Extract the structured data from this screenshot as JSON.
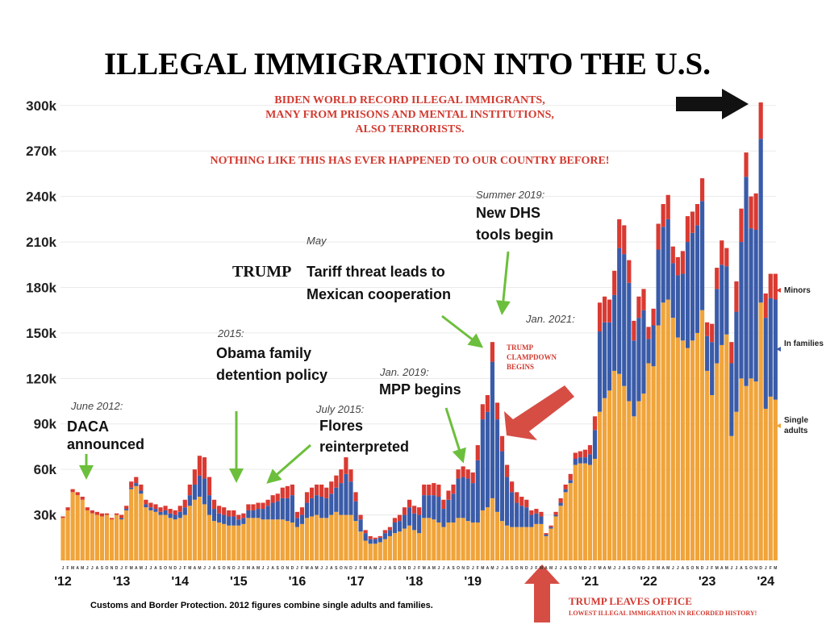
{
  "chart_data": {
    "type": "stacked-bar",
    "title": "ILLEGAL IMMIGRATION INTO THE U.S.",
    "source": "Customs and Border Protection. 2012 figures combine single adults and families.",
    "ylim": [
      0,
      310
    ],
    "yticks": [
      {
        "value": 30,
        "label": "30k"
      },
      {
        "value": 60,
        "label": "60k"
      },
      {
        "value": 90,
        "label": "90k"
      },
      {
        "value": 120,
        "label": "120k"
      },
      {
        "value": 150,
        "label": "150k"
      },
      {
        "value": 180,
        "label": "180k"
      },
      {
        "value": 210,
        "label": "210k"
      },
      {
        "value": 240,
        "label": "240k"
      },
      {
        "value": 270,
        "label": "270k"
      },
      {
        "value": 300,
        "label": "300k"
      }
    ],
    "grid": true,
    "categories": [
      "J",
      "F",
      "M",
      "A",
      "M",
      "J",
      "J",
      "A",
      "S",
      "O",
      "N",
      "D",
      "J",
      "F",
      "M",
      "A",
      "M",
      "J",
      "J",
      "A",
      "S",
      "O",
      "N",
      "D",
      "J",
      "F",
      "M",
      "A",
      "M",
      "J",
      "J",
      "A",
      "S",
      "O",
      "N",
      "D",
      "J",
      "F",
      "M",
      "A",
      "M",
      "J",
      "J",
      "A",
      "S",
      "O",
      "N",
      "D",
      "J",
      "F",
      "M",
      "A",
      "M",
      "J",
      "J",
      "A",
      "S",
      "O",
      "N",
      "D",
      "J",
      "F",
      "M",
      "A",
      "M",
      "J",
      "J",
      "A",
      "S",
      "O",
      "N",
      "D",
      "J",
      "F",
      "M",
      "A",
      "M",
      "J",
      "J",
      "A",
      "S",
      "O",
      "N",
      "D",
      "J",
      "F",
      "M",
      "A",
      "M",
      "J",
      "J",
      "A",
      "S",
      "O",
      "N",
      "D",
      "J",
      "F",
      "M",
      "A",
      "M",
      "J",
      "J",
      "A",
      "S",
      "O",
      "N",
      "D",
      "J",
      "F",
      "M",
      "A",
      "M",
      "J",
      "J",
      "A",
      "S",
      "O",
      "N",
      "D",
      "J",
      "F",
      "M",
      "A",
      "M",
      "J",
      "J",
      "A",
      "S",
      "O",
      "N",
      "D",
      "J",
      "F",
      "M",
      "A",
      "M",
      "J",
      "J",
      "A",
      "S",
      "O",
      "N",
      "D",
      "J",
      "F",
      "M"
    ],
    "years": [
      "'12",
      null,
      null,
      null,
      null,
      null,
      null,
      null,
      null,
      null,
      null,
      null,
      "'13",
      null,
      null,
      null,
      null,
      null,
      null,
      null,
      null,
      null,
      null,
      null,
      "'14",
      null,
      null,
      null,
      null,
      null,
      null,
      null,
      null,
      null,
      null,
      null,
      "'15",
      null,
      null,
      null,
      null,
      null,
      null,
      null,
      null,
      null,
      null,
      null,
      "'16",
      null,
      null,
      null,
      null,
      null,
      null,
      null,
      null,
      null,
      null,
      null,
      "'17",
      null,
      null,
      null,
      null,
      null,
      null,
      null,
      null,
      null,
      null,
      null,
      "'18",
      null,
      null,
      null,
      null,
      null,
      null,
      null,
      null,
      null,
      null,
      null,
      "'19",
      null,
      null,
      null,
      null,
      null,
      null,
      null,
      null,
      null,
      null,
      null,
      null,
      null,
      null,
      null,
      null,
      null,
      null,
      null,
      null,
      null,
      null,
      null,
      "'21",
      null,
      null,
      null,
      null,
      null,
      null,
      null,
      null,
      null,
      null,
      null,
      "'22",
      null,
      null,
      null,
      null,
      null,
      null,
      null,
      null,
      null,
      null,
      null,
      "'23",
      null,
      null,
      null,
      null,
      null,
      null,
      null,
      null,
      null,
      null,
      null,
      "'24",
      null,
      null
    ],
    "series": [
      {
        "name": "Single adults",
        "color": "#f0a43a",
        "values": [
          28,
          33,
          45,
          43,
          40,
          33,
          31,
          30,
          29,
          30,
          27,
          30,
          27,
          33,
          47,
          49,
          44,
          35,
          33,
          32,
          30,
          30,
          28,
          27,
          28,
          30,
          36,
          40,
          42,
          37,
          30,
          26,
          25,
          24,
          23,
          23,
          23,
          24,
          28,
          28,
          28,
          27,
          27,
          27,
          27,
          27,
          26,
          25,
          22,
          24,
          28,
          29,
          30,
          28,
          28,
          30,
          32,
          30,
          30,
          30,
          26,
          19,
          13,
          11,
          11,
          12,
          14,
          16,
          18,
          19,
          21,
          23,
          20,
          18,
          28,
          28,
          27,
          25,
          22,
          25,
          25,
          28,
          28,
          26,
          25,
          25,
          33,
          35,
          41,
          32,
          26,
          23,
          22,
          22,
          22,
          22,
          22,
          24,
          24,
          16,
          21,
          29,
          36,
          45,
          51,
          63,
          64,
          64,
          63,
          67,
          98,
          107,
          112,
          125,
          123,
          115,
          105,
          95,
          105,
          110,
          130,
          128,
          155,
          170,
          172,
          160,
          147,
          145,
          140,
          145,
          150,
          165,
          125,
          109,
          130,
          142,
          149,
          82,
          98,
          120,
          115,
          120,
          118,
          170,
          100,
          108,
          106
        ]
      },
      {
        "name": "In families",
        "color": "#3a5ba8",
        "values": [
          0,
          0,
          0,
          0,
          0,
          0,
          0,
          0,
          0,
          0,
          0,
          0,
          1,
          1,
          1,
          2,
          2,
          2,
          2,
          2,
          2,
          3,
          3,
          3,
          4,
          5,
          7,
          10,
          14,
          17,
          13,
          8,
          6,
          6,
          6,
          6,
          4,
          4,
          5,
          5,
          6,
          7,
          9,
          11,
          12,
          14,
          15,
          18,
          6,
          6,
          10,
          12,
          13,
          14,
          13,
          14,
          16,
          21,
          27,
          22,
          13,
          8,
          5,
          3,
          3,
          3,
          4,
          4,
          7,
          7,
          9,
          12,
          11,
          12,
          15,
          15,
          16,
          17,
          12,
          15,
          19,
          26,
          27,
          28,
          26,
          41,
          60,
          63,
          90,
          61,
          46,
          32,
          23,
          16,
          14,
          13,
          8,
          7,
          5,
          1,
          1,
          1,
          2,
          2,
          2,
          4,
          4,
          4,
          7,
          19,
          53,
          50,
          45,
          50,
          83,
          87,
          78,
          50,
          55,
          55,
          16,
          27,
          50,
          50,
          53,
          36,
          41,
          44,
          70,
          71,
          71,
          72,
          23,
          35,
          49,
          53,
          45,
          48,
          66,
          90,
          138,
          99,
          100,
          108,
          60,
          65,
          66
        ]
      },
      {
        "name": "Minors",
        "color": "#d93a32",
        "values": [
          1,
          2,
          2,
          2,
          2,
          2,
          2,
          2,
          2,
          1,
          1,
          1,
          2,
          2,
          4,
          4,
          4,
          3,
          3,
          3,
          3,
          3,
          3,
          3,
          4,
          5,
          7,
          10,
          13,
          14,
          12,
          6,
          5,
          5,
          4,
          4,
          3,
          3,
          4,
          4,
          4,
          4,
          4,
          5,
          5,
          7,
          8,
          7,
          4,
          5,
          7,
          7,
          7,
          8,
          7,
          8,
          8,
          9,
          11,
          8,
          6,
          3,
          2,
          2,
          1,
          1,
          2,
          2,
          3,
          4,
          5,
          5,
          5,
          5,
          7,
          7,
          8,
          8,
          6,
          6,
          6,
          6,
          7,
          6,
          7,
          10,
          10,
          11,
          13,
          11,
          10,
          8,
          7,
          7,
          6,
          5,
          3,
          3,
          3,
          1,
          1,
          2,
          3,
          3,
          4,
          4,
          4,
          5,
          6,
          9,
          19,
          17,
          15,
          16,
          19,
          19,
          15,
          13,
          14,
          14,
          8,
          11,
          17,
          15,
          16,
          11,
          12,
          15,
          17,
          14,
          14,
          15,
          9,
          12,
          14,
          16,
          12,
          14,
          20,
          22,
          16,
          21,
          24,
          24,
          16,
          16,
          17
        ]
      }
    ],
    "annotations": [
      {
        "lines": [
          "June 2012:"
        ]
      },
      {
        "lines": [
          "DACA",
          "announced"
        ]
      },
      {
        "lines": [
          "2015:"
        ]
      },
      {
        "lines": [
          "Obama family",
          "detention policy"
        ]
      },
      {
        "lines": [
          "July 2015:"
        ]
      },
      {
        "lines": [
          "Flores",
          "reinterpreted"
        ]
      },
      {
        "lines": [
          "May"
        ]
      },
      {
        "lines": [
          "TRUMP"
        ]
      },
      {
        "lines": [
          "Tariff threat leads to",
          "Mexican cooperation"
        ]
      },
      {
        "lines": [
          "Jan. 2019:"
        ]
      },
      {
        "lines": [
          "MPP begins"
        ]
      },
      {
        "lines": [
          "Summer 2019:"
        ]
      },
      {
        "lines": [
          "New DHS",
          "tools begin"
        ]
      },
      {
        "lines": [
          "Jan. 2021:"
        ]
      },
      {
        "lines": [
          "TRUMP",
          "CLAMPDOWN",
          "BEGINS"
        ]
      },
      {
        "lines": [
          "BIDEN WORLD RECORD ILLEGAL IMMIGRANTS,",
          "MANY FROM PRISONS AND MENTAL INSTITUTIONS,",
          "ALSO TERRORISTS."
        ]
      },
      {
        "lines": [
          "NOTHING LIKE THIS HAS EVER HAPPENED TO OUR COUNTRY BEFORE!"
        ]
      },
      {
        "lines": [
          "TRUMP LEAVES OFFICE"
        ]
      },
      {
        "lines": [
          "LOWEST ILLEGAL IMMIGRATION IN RECORDED HISTORY!"
        ]
      }
    ]
  }
}
